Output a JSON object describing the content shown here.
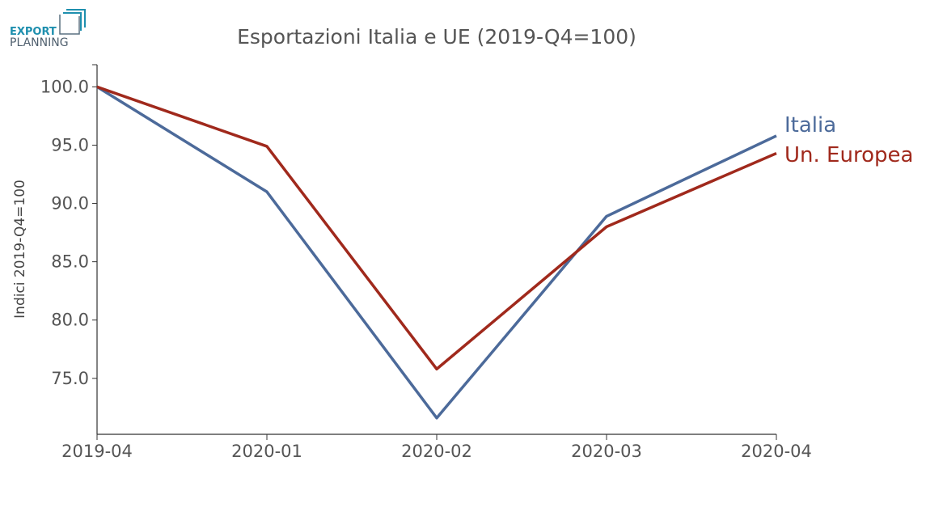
{
  "logo": {
    "line1": "EXPORT",
    "line2": "PLANNING"
  },
  "chart_data": {
    "type": "line",
    "title": "Esportazioni Italia e UE (2019-Q4=100)",
    "xlabel": "",
    "ylabel": "Indici 2019-Q4=100",
    "categories": [
      "2019-04",
      "2020-01",
      "2020-02",
      "2020-03",
      "2020-04"
    ],
    "ylim": [
      70.2,
      101.9
    ],
    "yticks": [
      75.0,
      80.0,
      85.0,
      90.0,
      95.0,
      100.0
    ],
    "grid": false,
    "legend": "end-of-line labels, right",
    "series": [
      {
        "name": "Italia",
        "color": "#4c6a9a",
        "values": [
          100.0,
          91.0,
          71.6,
          88.9,
          95.8
        ]
      },
      {
        "name": "Un. Europea",
        "color": "#a0291c",
        "values": [
          100.0,
          94.9,
          75.8,
          88.0,
          94.3
        ]
      }
    ]
  }
}
